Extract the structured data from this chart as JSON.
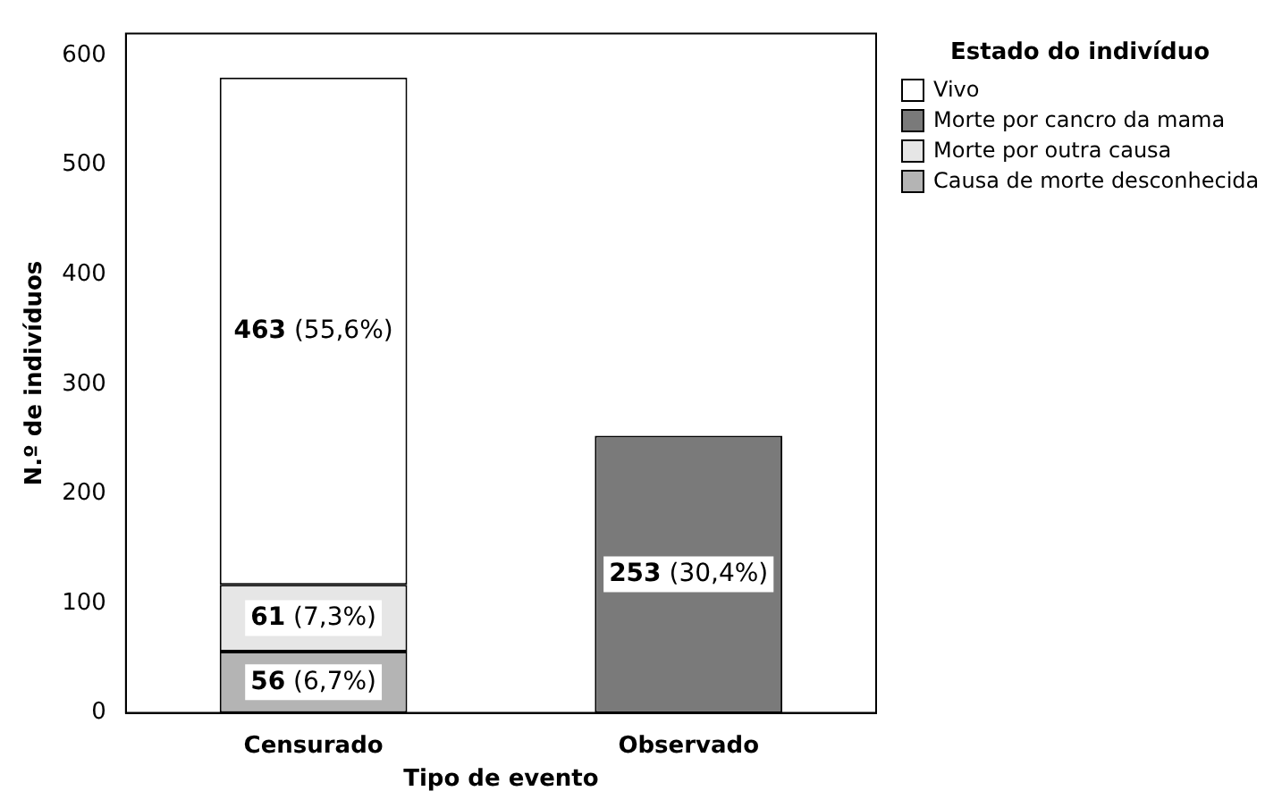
{
  "chart_data": {
    "type": "bar",
    "stacked": true,
    "xlabel": "Tipo de evento",
    "ylabel": "N.º de indivíduos",
    "legend_title": "Estado do indivíduo",
    "legend": "right",
    "categories": [
      "Censurado",
      "Observado"
    ],
    "series": [
      {
        "name": "Causa de morte desconhecida",
        "color": "#b4b4b4",
        "values": [
          56,
          null
        ],
        "value_labels": [
          "56 (6,7%)",
          null
        ]
      },
      {
        "name": "Morte por outra causa",
        "color": "#e6e6e6",
        "values": [
          61,
          null
        ],
        "value_labels": [
          "61 (7,3%)",
          null
        ]
      },
      {
        "name": "Morte por cancro da mama",
        "color": "#7a7a7a",
        "values": [
          null,
          253
        ],
        "value_labels": [
          null,
          "253 (30,4%)"
        ]
      },
      {
        "name": "Vivo",
        "color": "#ffffff",
        "values": [
          463,
          null
        ],
        "value_labels": [
          "463 (55,6%)",
          null
        ]
      }
    ],
    "ylim": [
      0,
      620
    ],
    "yticks": [
      0,
      100,
      200,
      300,
      400,
      500,
      600
    ],
    "grid": false
  }
}
